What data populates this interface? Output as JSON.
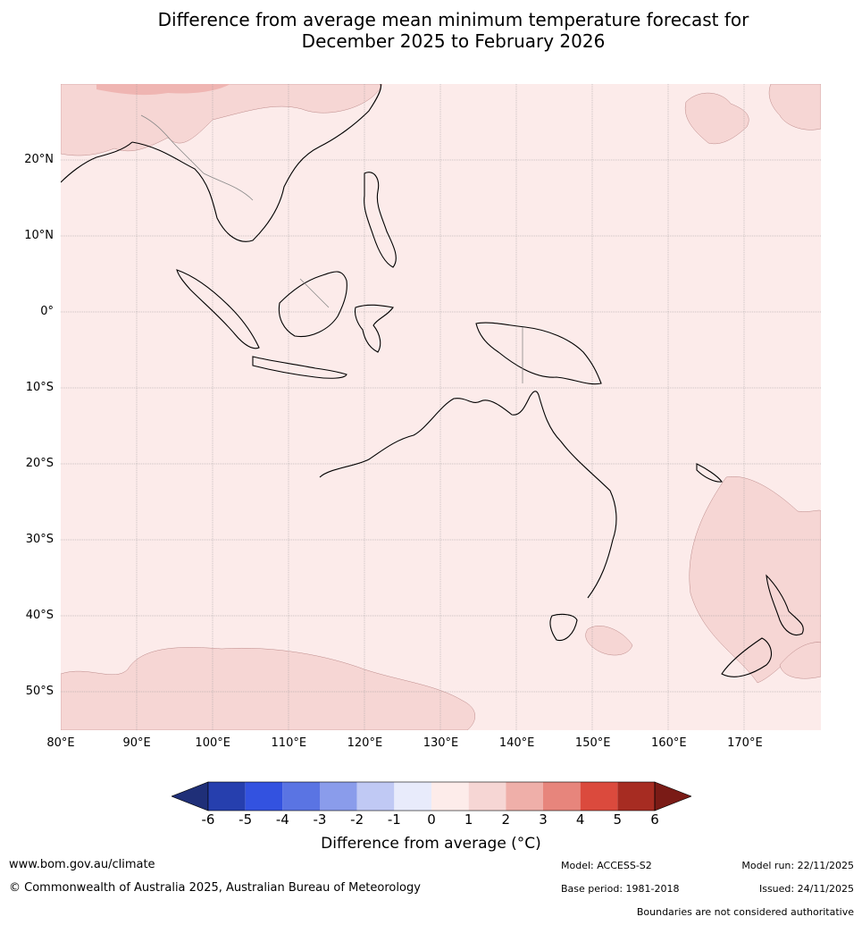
{
  "title": {
    "line1": "Difference from average mean minimum temperature forecast for",
    "line2": "December 2025 to February 2026"
  },
  "map": {
    "lon_range": [
      80,
      180
    ],
    "lat_range": [
      -55,
      30
    ],
    "lat_labels": [
      {
        "value": 20,
        "label": "20°N"
      },
      {
        "value": 10,
        "label": "10°N"
      },
      {
        "value": 0,
        "label": "0°"
      },
      {
        "value": -10,
        "label": "10°S"
      },
      {
        "value": -20,
        "label": "20°S"
      },
      {
        "value": -30,
        "label": "30°S"
      },
      {
        "value": -40,
        "label": "40°S"
      },
      {
        "value": -50,
        "label": "50°S"
      }
    ],
    "lon_labels": [
      {
        "value": 80,
        "label": "80°E"
      },
      {
        "value": 90,
        "label": "90°E"
      },
      {
        "value": 100,
        "label": "100°E"
      },
      {
        "value": 110,
        "label": "110°E"
      },
      {
        "value": 120,
        "label": "120°E"
      },
      {
        "value": 130,
        "label": "130°E"
      },
      {
        "value": 140,
        "label": "140°E"
      },
      {
        "value": 150,
        "label": "150°E"
      },
      {
        "value": 160,
        "label": "160°E"
      },
      {
        "value": 170,
        "label": "170°E"
      }
    ],
    "background_color": "#fcebea",
    "warm_color": "#f6d6d4",
    "hot_color": "#efb5b2"
  },
  "colorbar": {
    "title": "Difference from average (°C)",
    "ticks": [
      "-6",
      "-5",
      "-4",
      "-3",
      "-2",
      "-1",
      "0",
      "1",
      "2",
      "3",
      "4",
      "5",
      "6"
    ],
    "under_color": "#1f2f78",
    "over_color": "#7a1b16",
    "colors": [
      "#263fae",
      "#3352e0",
      "#5a74e3",
      "#8a9ceb",
      "#c0c9f4",
      "#e8ebfb",
      "#fdecea",
      "#f6d6d4",
      "#efafa9",
      "#e7857c",
      "#db4a3d",
      "#a72c22"
    ]
  },
  "footer": {
    "website": "www.bom.gov.au/climate",
    "copyright": "© Commonwealth of Australia 2025, Australian Bureau of Meteorology",
    "model": "Model: ACCESS-S2",
    "base_period": "Base period: 1981-2018",
    "model_run": "Model run: 22/11/2025",
    "issued": "Issued: 24/11/2025",
    "disclaimer": "Boundaries are not considered authoritative"
  }
}
